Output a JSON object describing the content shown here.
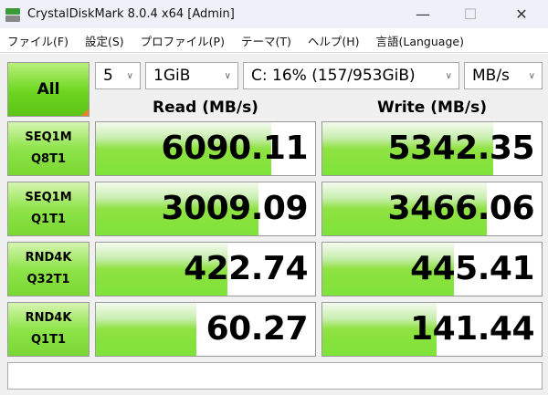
{
  "window": {
    "title": "CrystalDiskMark 8.0.4 x64 [Admin]",
    "minimize": "—",
    "maximize": "☐",
    "close": "✕"
  },
  "menu": [
    "ファイル(F)",
    "設定(S)",
    "プロファイル(P)",
    "テーマ(T)",
    "ヘルプ(H)",
    "言語(Language)"
  ],
  "controls": {
    "all_button": "All",
    "count": "5",
    "size": "1GiB",
    "drive": "C: 16% (157/953GiB)",
    "unit": "MB/s"
  },
  "headers": {
    "read": "Read (MB/s)",
    "write": "Write (MB/s)"
  },
  "colors": {
    "accent": "#7ee338",
    "corner": "#f08020"
  },
  "tests": [
    {
      "line1": "SEQ1M",
      "line2": "Q8T1",
      "read": "6090.11",
      "write": "5342.35",
      "read_fill_pct": 80,
      "write_fill_pct": 78
    },
    {
      "line1": "SEQ1M",
      "line2": "Q1T1",
      "read": "3009.09",
      "write": "3466.06",
      "read_fill_pct": 74,
      "write_fill_pct": 75
    },
    {
      "line1": "RND4K",
      "line2": "Q32T1",
      "read": "422.74",
      "write": "445.41",
      "read_fill_pct": 60,
      "write_fill_pct": 60
    },
    {
      "line1": "RND4K",
      "line2": "Q1T1",
      "read": "60.27",
      "write": "141.44",
      "read_fill_pct": 46,
      "write_fill_pct": 52
    }
  ],
  "status": ""
}
